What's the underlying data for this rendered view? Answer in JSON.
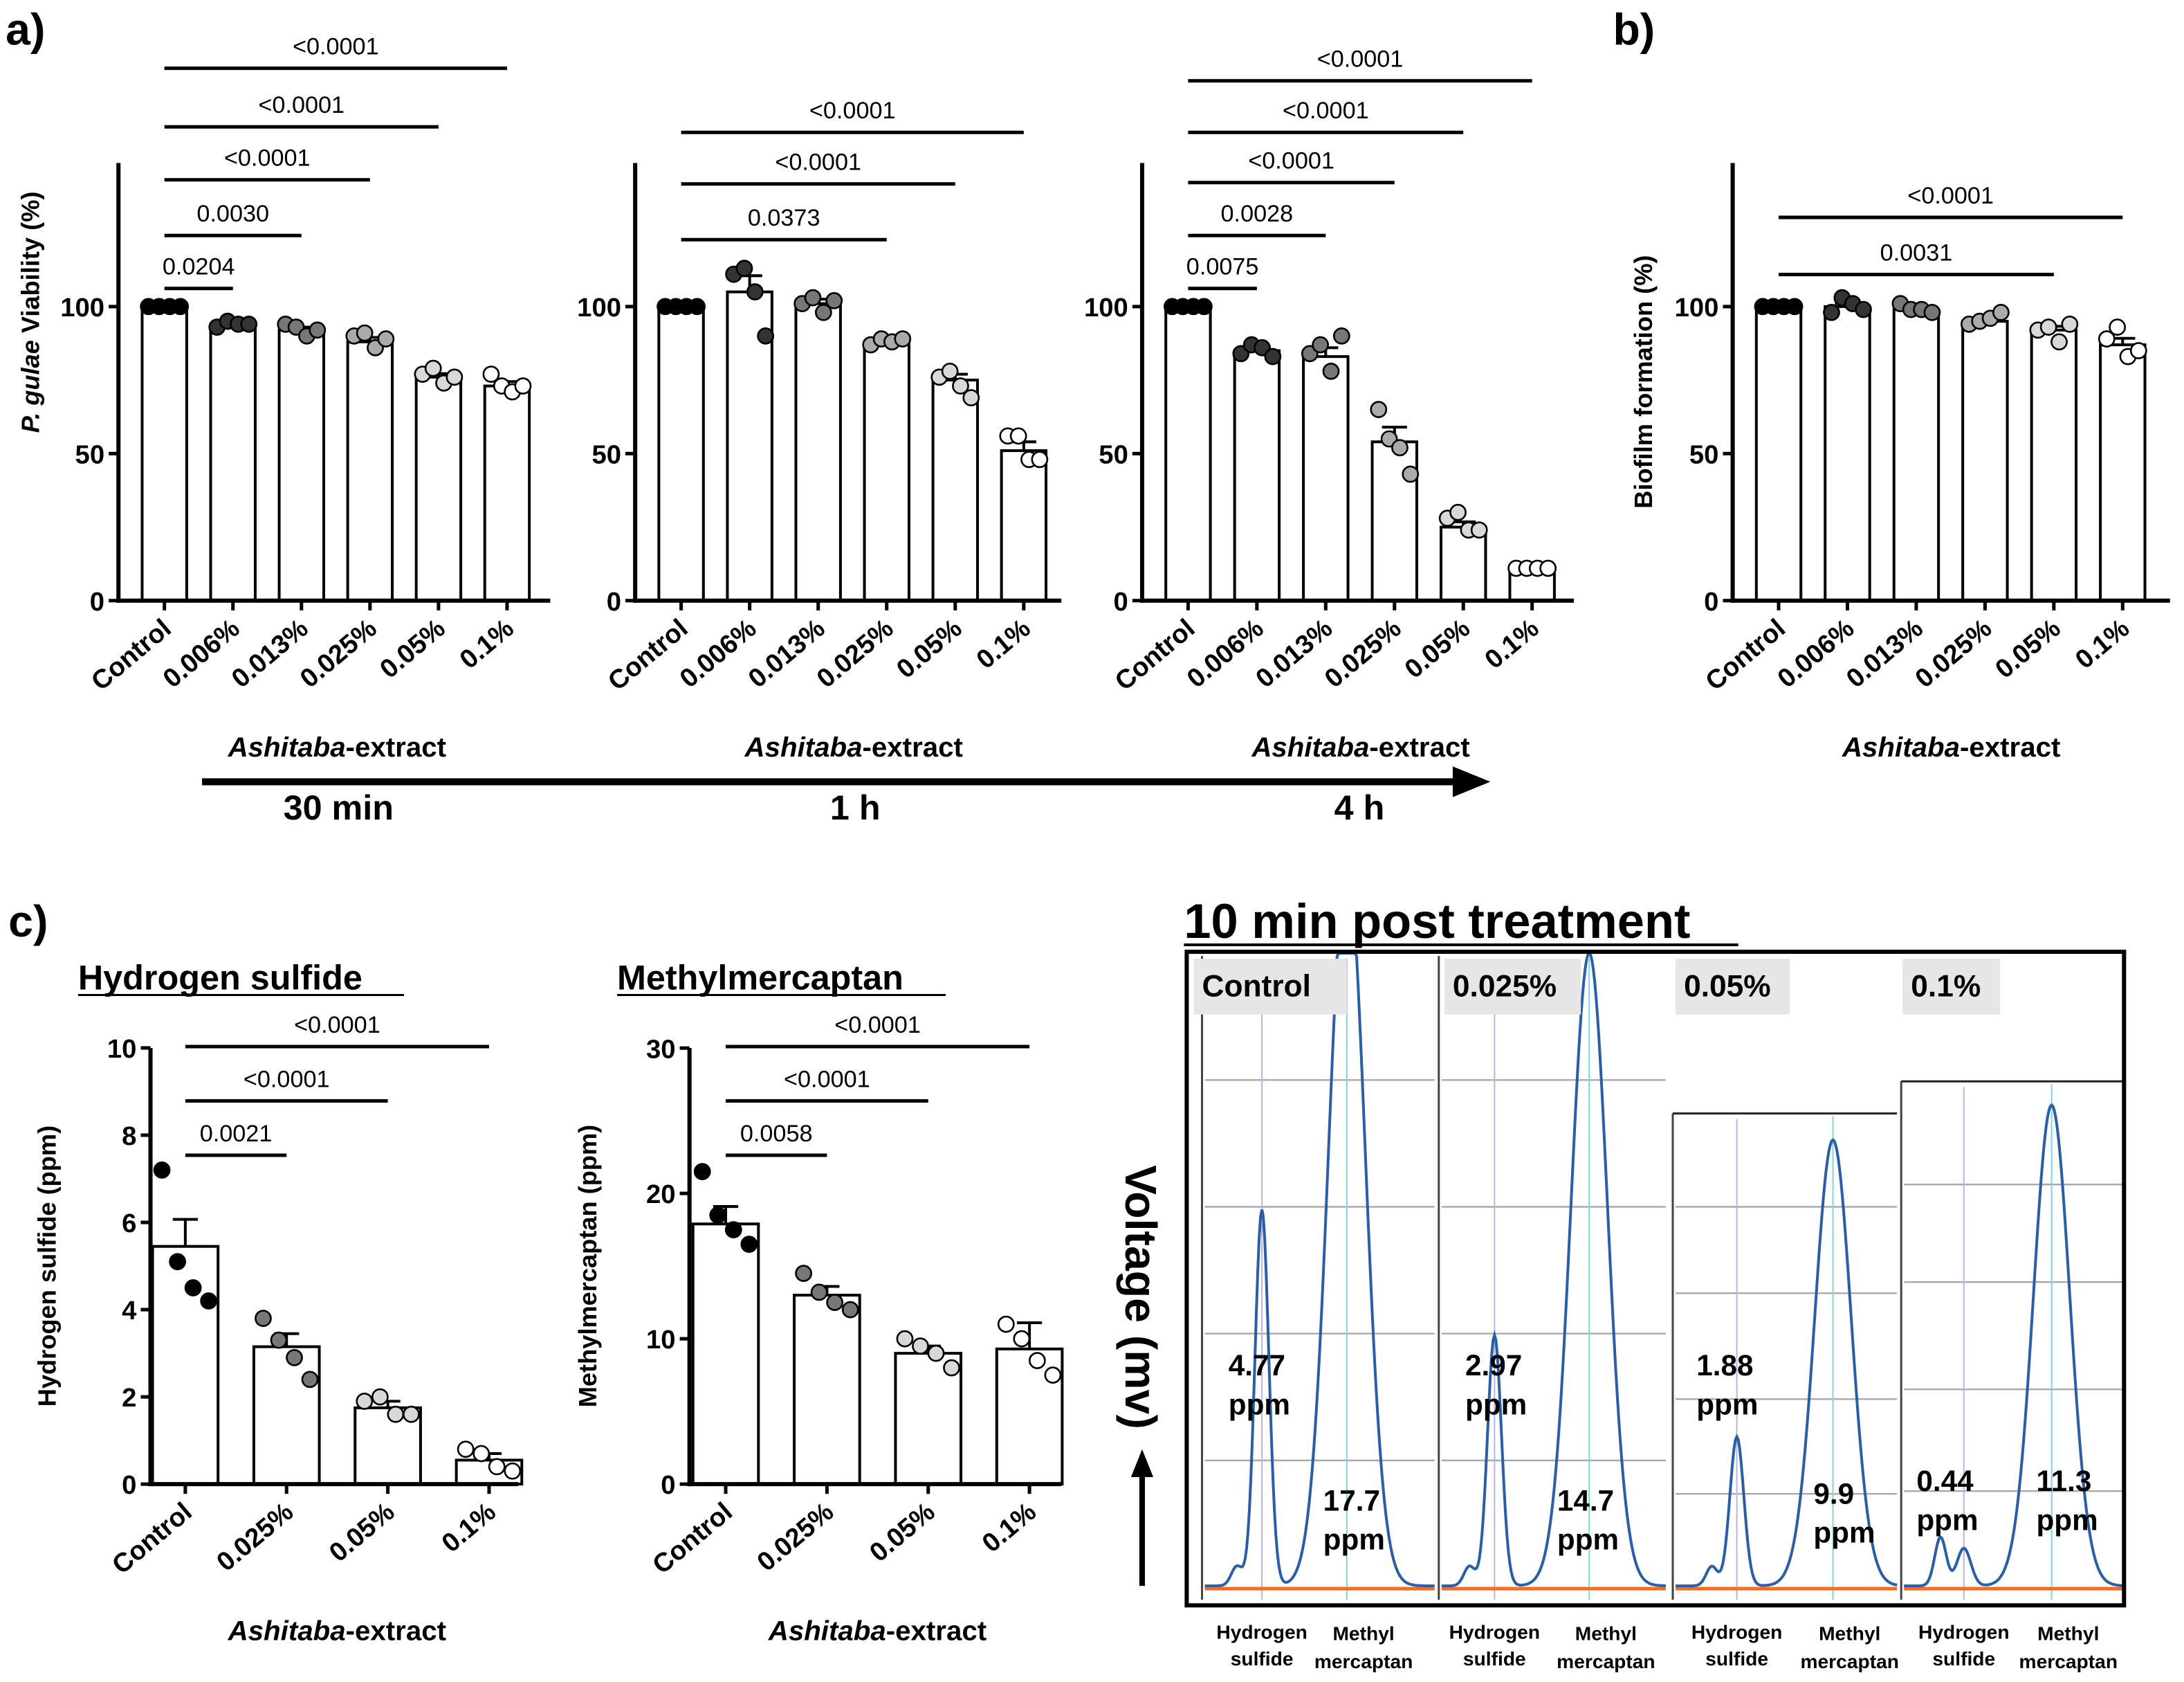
{
  "panel_labels": {
    "a": "a)",
    "b": "b)",
    "c": "c)"
  },
  "xlabel_italic": "Ashitaba",
  "xlabel_rest": "-extract",
  "time_labels": [
    "30 min",
    "1 h",
    "4 h"
  ],
  "colors": {
    "bar_fill": "#ffffff",
    "axis": "#000000",
    "trace": "#2a5fa8",
    "baseline": "#ff6a1a",
    "marker_line": "#7fd6e0",
    "label_bg": "#e6e6e6"
  },
  "chart_data": [
    {
      "id": "a_30min",
      "type": "bar",
      "ylabel_italic": "P. gulae",
      "ylabel": " Viability (%)",
      "ylim": [
        0,
        150
      ],
      "yticks": [
        "0",
        "50",
        "100"
      ],
      "categories": [
        "Control",
        "0.006%",
        "0.013%",
        "0.025%",
        "0.05%",
        "0.1%"
      ],
      "values": [
        100,
        94,
        92,
        88,
        76,
        73
      ],
      "sem": [
        0,
        0.5,
        1,
        1.5,
        1.2,
        1.5
      ],
      "points": [
        [
          100,
          100,
          100,
          100
        ],
        [
          93,
          95,
          94,
          94
        ],
        [
          94,
          93,
          90,
          92
        ],
        [
          90,
          91,
          86,
          89
        ],
        [
          77,
          79,
          74,
          76
        ],
        [
          77,
          73,
          71,
          73
        ]
      ],
      "comparisons": [
        {
          "to": "0.006%",
          "p": "0.0204"
        },
        {
          "to": "0.013%",
          "p": "0.0030"
        },
        {
          "to": "0.025%",
          "p": "<0.0001"
        },
        {
          "to": "0.05%",
          "p": "<0.0001"
        },
        {
          "to": "0.1%",
          "p": "<0.0001"
        }
      ]
    },
    {
      "id": "a_1h",
      "type": "bar",
      "ylabel": "",
      "ylim": [
        0,
        150
      ],
      "yticks": [
        "0",
        "50",
        "100"
      ],
      "categories": [
        "Control",
        "0.006%",
        "0.013%",
        "0.025%",
        "0.05%",
        "0.1%"
      ],
      "values": [
        100,
        105,
        101,
        88,
        75,
        51
      ],
      "sem": [
        0,
        5.5,
        1.5,
        0.8,
        2,
        3
      ],
      "points": [
        [
          100,
          100,
          100,
          100
        ],
        [
          111,
          113,
          105,
          90
        ],
        [
          101,
          103,
          98,
          102
        ],
        [
          87,
          89,
          88,
          89
        ],
        [
          76,
          78,
          73,
          69
        ],
        [
          56,
          56,
          48,
          48
        ]
      ],
      "comparisons": [
        {
          "to": "0.025%",
          "p": "0.0373"
        },
        {
          "to": "0.05%",
          "p": "<0.0001"
        },
        {
          "to": "0.1%",
          "p": "<0.0001"
        }
      ]
    },
    {
      "id": "a_4h",
      "type": "bar",
      "ylabel": "",
      "ylim": [
        0,
        150
      ],
      "yticks": [
        "0",
        "50",
        "100"
      ],
      "categories": [
        "Control",
        "0.006%",
        "0.013%",
        "0.025%",
        "0.05%",
        "0.1%"
      ],
      "values": [
        100,
        85,
        83,
        54,
        25,
        10
      ],
      "sem": [
        0,
        1,
        3,
        5,
        1.8,
        0.3
      ],
      "points": [
        [
          100,
          100,
          100,
          100
        ],
        [
          84,
          87,
          86,
          83
        ],
        [
          84,
          87,
          78,
          90
        ],
        [
          65,
          55,
          52,
          43
        ],
        [
          28,
          30,
          24,
          24
        ],
        [
          11,
          11,
          11,
          11
        ]
      ],
      "comparisons": [
        {
          "to": "0.006%",
          "p": "0.0075"
        },
        {
          "to": "0.013%",
          "p": "0.0028"
        },
        {
          "to": "0.025%",
          "p": "<0.0001"
        },
        {
          "to": "0.05%",
          "p": "<0.0001"
        },
        {
          "to": "0.1%",
          "p": "<0.0001"
        }
      ]
    },
    {
      "id": "b_biofilm",
      "type": "bar",
      "ylabel": "Biofilm formation (%)",
      "ylim": [
        0,
        150
      ],
      "yticks": [
        "0",
        "50",
        "100"
      ],
      "categories": [
        "Control",
        "0.006%",
        "0.013%",
        "0.025%",
        "0.05%",
        "0.1%"
      ],
      "values": [
        100,
        100,
        99,
        95,
        92,
        87
      ],
      "sem": [
        0,
        1,
        0.8,
        0.8,
        1.3,
        2.2
      ],
      "points": [
        [
          100,
          100,
          100,
          100
        ],
        [
          98,
          103,
          101,
          99
        ],
        [
          101,
          99,
          99,
          98
        ],
        [
          94,
          95,
          96,
          98
        ],
        [
          92,
          93,
          88,
          94
        ],
        [
          89,
          93,
          83,
          85
        ]
      ],
      "comparisons": [
        {
          "to": "0.05%",
          "p": "0.0031"
        },
        {
          "to": "0.1%",
          "p": "<0.0001"
        }
      ]
    },
    {
      "id": "c_h2s",
      "type": "bar",
      "title": "Hydrogen sulfide",
      "ylabel": "Hydrogen sulfide (ppm)",
      "ylim": [
        0,
        10
      ],
      "yticks": [
        "0",
        "2",
        "4",
        "6",
        "8",
        "10"
      ],
      "categories": [
        "Control",
        "0.025%",
        "0.05%",
        "0.1%"
      ],
      "values": [
        5.45,
        3.15,
        1.75,
        0.55
      ],
      "sem": [
        0.62,
        0.3,
        0.15,
        0.15
      ],
      "points": [
        [
          7.2,
          5.1,
          4.5,
          4.2
        ],
        [
          3.8,
          3.3,
          2.9,
          2.4
        ],
        [
          1.9,
          2.0,
          1.6,
          1.6
        ],
        [
          0.8,
          0.7,
          0.4,
          0.3
        ]
      ],
      "comparisons": [
        {
          "to": "0.025%",
          "p": "0.0021"
        },
        {
          "to": "0.05%",
          "p": "<0.0001"
        },
        {
          "to": "0.1%",
          "p": "<0.0001"
        }
      ]
    },
    {
      "id": "c_methyl",
      "type": "bar",
      "title": "Methylmercaptan",
      "ylabel": "Methylmercaptan (ppm)",
      "ylim": [
        0,
        30
      ],
      "yticks": [
        "0",
        "10",
        "20",
        "30"
      ],
      "categories": [
        "Control",
        "0.025%",
        "0.05%",
        "0.1%"
      ],
      "values": [
        17.9,
        13.0,
        9.0,
        9.3
      ],
      "sem": [
        1.2,
        0.6,
        0.5,
        1.8
      ],
      "points": [
        [
          21.5,
          18.5,
          17.5,
          16.5
        ],
        [
          14.5,
          13.2,
          12.5,
          12
        ],
        [
          10,
          9.5,
          9.0,
          8.0
        ],
        [
          11,
          10,
          8.5,
          7.5
        ]
      ],
      "comparisons": [
        {
          "to": "0.025%",
          "p": "0.0058"
        },
        {
          "to": "0.05%",
          "p": "<0.0001"
        },
        {
          "to": "0.1%",
          "p": "<0.0001"
        }
      ]
    }
  ],
  "chromatogram": {
    "title": "10 min post treatment",
    "ylabel": "Voltage (mv)",
    "xlabels": {
      "h2s_1": "Hydrogen",
      "h2s_2": "sulfide",
      "mm_1": "Methyl",
      "mm_2": "mercaptan"
    },
    "panels": [
      {
        "condition": "Control",
        "h2s_value": "4.77",
        "mm_value": "17.7",
        "unit": "ppm"
      },
      {
        "condition": "0.025%",
        "h2s_value": "2.97",
        "mm_value": "14.7",
        "unit": "ppm"
      },
      {
        "condition": "0.05%",
        "h2s_value": "1.88",
        "mm_value": "9.9",
        "unit": "ppm"
      },
      {
        "condition": "0.1%",
        "h2s_value": "0.44",
        "mm_value": "11.3",
        "unit": "ppm"
      }
    ]
  }
}
